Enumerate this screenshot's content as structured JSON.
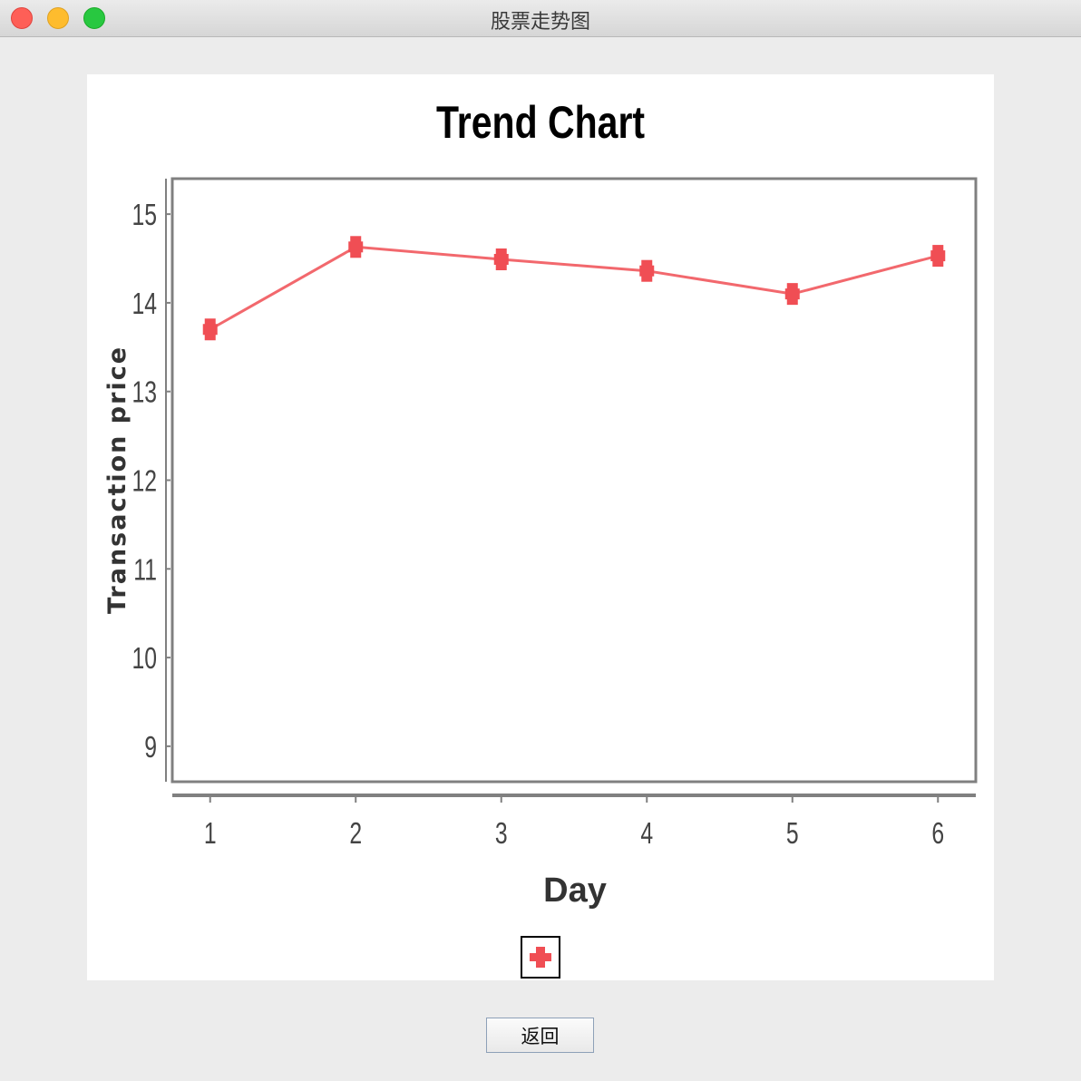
{
  "window": {
    "title": "股票走势图",
    "controls": [
      "close",
      "minimize",
      "zoom"
    ]
  },
  "colors": {
    "series": "#f04e54",
    "frame": "#808080",
    "background": "#ececec",
    "panel": "#ffffff"
  },
  "chart_data": {
    "type": "line",
    "title": "Trend Chart",
    "xlabel": "Day",
    "ylabel": "Transaction price",
    "x": [
      1,
      2,
      3,
      4,
      5,
      6
    ],
    "series": [
      {
        "values": [
          13.7,
          14.63,
          14.49,
          14.36,
          14.1,
          14.53
        ]
      }
    ],
    "ylim": [
      8.6,
      15.4
    ],
    "yticks": [
      9,
      10,
      11,
      12,
      13,
      14,
      15
    ],
    "grid": false,
    "legend": "bottom-center"
  },
  "footer": {
    "back_label": "返回"
  }
}
